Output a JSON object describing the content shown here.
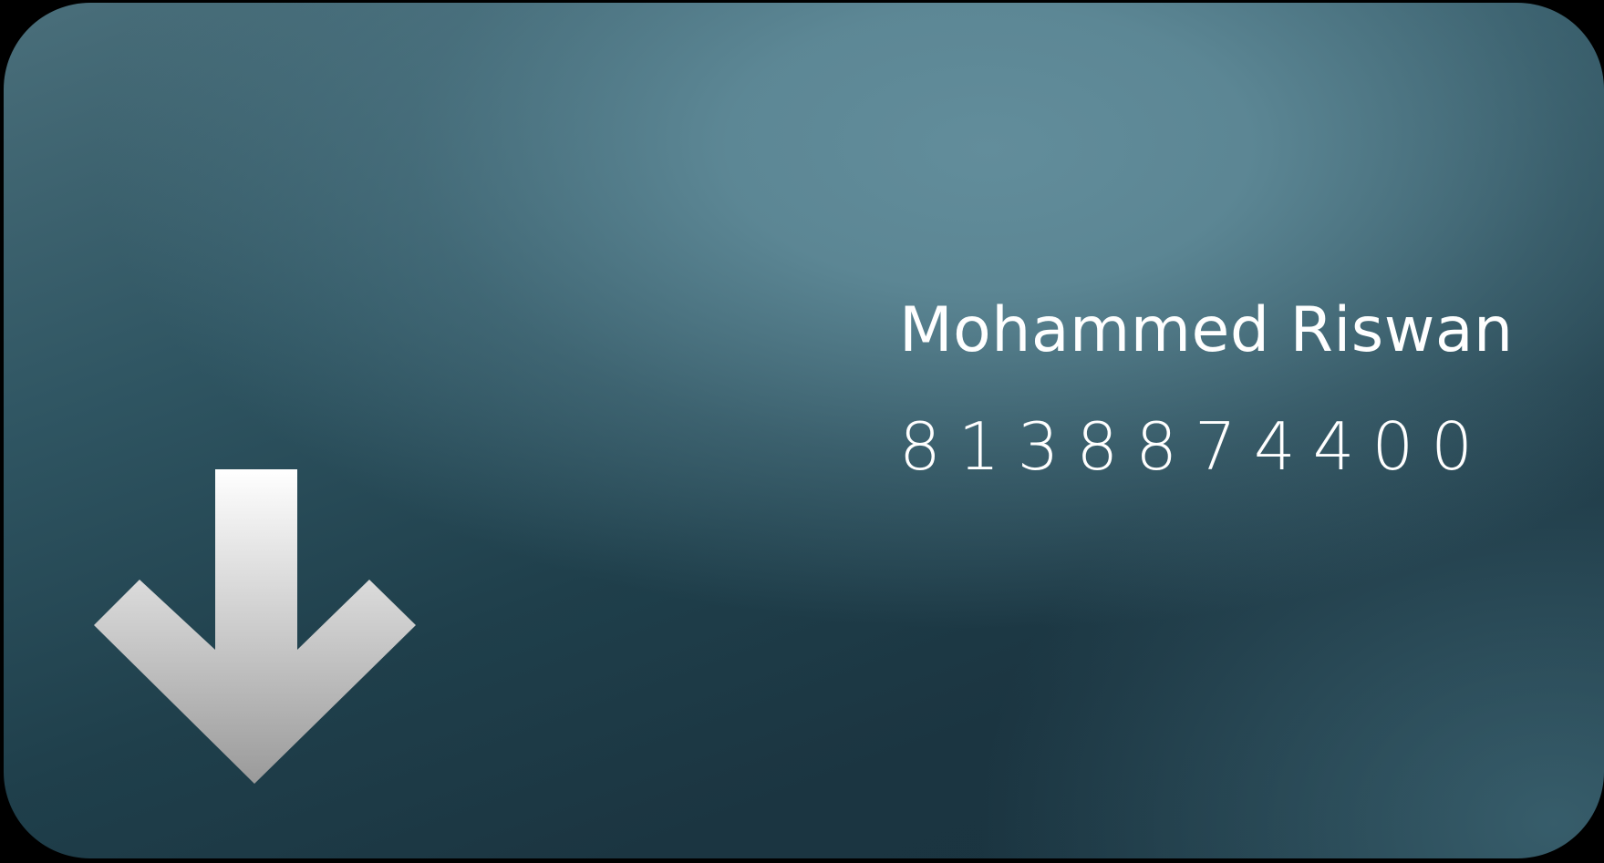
{
  "card": {
    "name": "Mohammed Riswan",
    "phone": "8138874400",
    "icon": "arrow-down-icon"
  },
  "colors": {
    "background": "#000000",
    "card_light": "#628d9b",
    "card_dark": "#1a3440",
    "text": "#ffffff",
    "arrow_top": "#ffffff",
    "arrow_bottom": "#9a9a9a"
  }
}
